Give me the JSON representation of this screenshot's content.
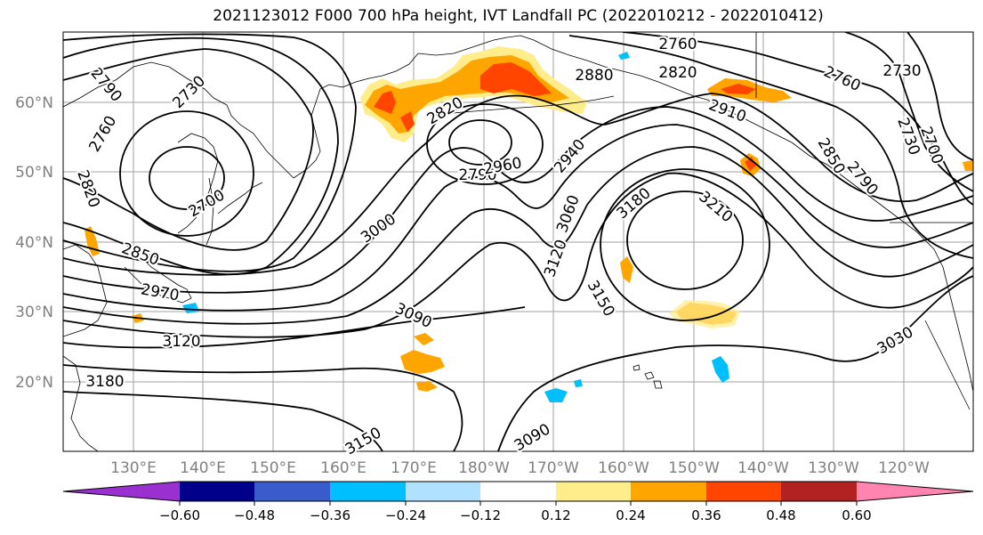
{
  "title": "2021123012 F000 700 hPa height, IVT Landfall PC (2022010212 - 2022010412)",
  "lat_ticks": [
    "60°N",
    "50°N",
    "40°N",
    "30°N",
    "20°N"
  ],
  "lon_ticks": [
    "130°E",
    "140°E",
    "150°E",
    "160°E",
    "170°E",
    "180°W",
    "170°W",
    "160°W",
    "150°W",
    "140°W",
    "130°W",
    "120°W"
  ],
  "contour_labels": [
    {
      "text": "2760"
    },
    {
      "text": "2820"
    },
    {
      "text": "2880"
    },
    {
      "text": "2730"
    },
    {
      "text": "2790"
    },
    {
      "text": "2730"
    },
    {
      "text": "2760"
    },
    {
      "text": "2820"
    },
    {
      "text": "2700"
    },
    {
      "text": "2850"
    },
    {
      "text": "2970"
    },
    {
      "text": "3120"
    },
    {
      "text": "3180"
    },
    {
      "text": "3090"
    },
    {
      "text": "3000"
    },
    {
      "text": "2820"
    },
    {
      "text": "2790"
    },
    {
      "text": "2960"
    },
    {
      "text": "2940"
    },
    {
      "text": "3060"
    },
    {
      "text": "3120"
    },
    {
      "text": "3180"
    },
    {
      "text": "3210"
    },
    {
      "text": "3150"
    },
    {
      "text": "2910"
    },
    {
      "text": "2760"
    },
    {
      "text": "2730"
    },
    {
      "text": "2700"
    },
    {
      "text": "3030"
    },
    {
      "text": "3090"
    },
    {
      "text": "3150"
    },
    {
      "text": "2850"
    },
    {
      "text": "2790"
    }
  ],
  "colorbar": {
    "colors": [
      "#9b30d0",
      "#00008b",
      "#3a5bcc",
      "#00bfff",
      "#b0e2ff",
      "#ffffff",
      "#ffec8b",
      "#ffa500",
      "#ff4500",
      "#b22222",
      "#ff85b0"
    ],
    "tick_labels": [
      "−0.60",
      "−0.48",
      "−0.36",
      "−0.24",
      "−0.12",
      "0.12",
      "0.24",
      "0.36",
      "0.48",
      "0.60"
    ]
  },
  "colors": {
    "contour": "#000000",
    "coast": "#000000",
    "grid": "#a0a0a0",
    "tick_label": "#808080"
  }
}
